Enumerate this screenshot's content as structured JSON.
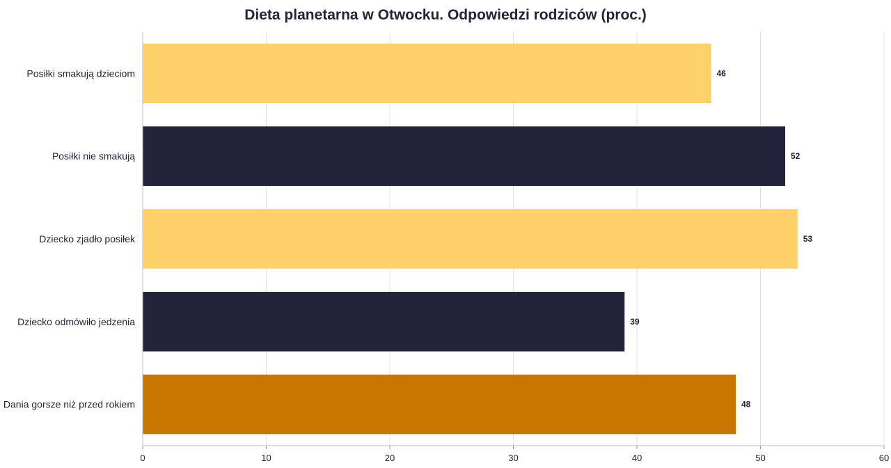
{
  "chart_data": {
    "type": "bar",
    "orientation": "horizontal",
    "title": "Dieta planetarna w Otwocku. Odpowiedzi rodziców (proc.)",
    "xlabel": "",
    "ylabel": "",
    "categories": [
      "Posiłki smakują dzieciom",
      "Posiłki nie smakują",
      "Dziecko zjadło posiłek",
      "Dziecko odmówiło jedzenia",
      "Dania gorsze niż przed rokiem"
    ],
    "values": [
      46,
      52,
      53,
      39,
      48
    ],
    "bar_colors": [
      "#fed16b",
      "#23233b",
      "#fed16b",
      "#23233b",
      "#c77700"
    ],
    "xlim": [
      0,
      60
    ],
    "x_ticks": [
      0,
      10,
      20,
      30,
      40,
      50,
      60
    ],
    "grid": true,
    "data_labels": true
  }
}
